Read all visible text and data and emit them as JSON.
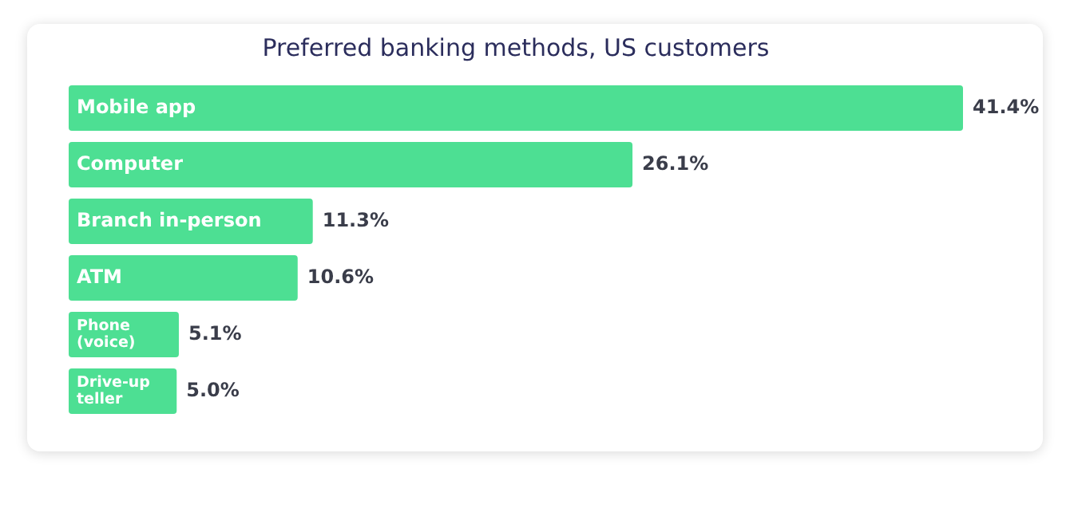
{
  "chart_data": {
    "type": "bar",
    "orientation": "horizontal",
    "title": "Preferred banking methods, US customers",
    "categories": [
      "Mobile app",
      "Computer",
      "Branch in-person",
      "ATM",
      "Phone (voice)",
      "Drive-up teller"
    ],
    "values": [
      41.4,
      26.1,
      11.3,
      10.6,
      5.1,
      5.0
    ],
    "value_labels": [
      "41.4%",
      "26.1%",
      "11.3%",
      "10.6%",
      "5.1%",
      "5.0%"
    ],
    "color": "#4ddf93",
    "xlim": [
      0,
      41.4
    ],
    "tick_labels": false
  }
}
